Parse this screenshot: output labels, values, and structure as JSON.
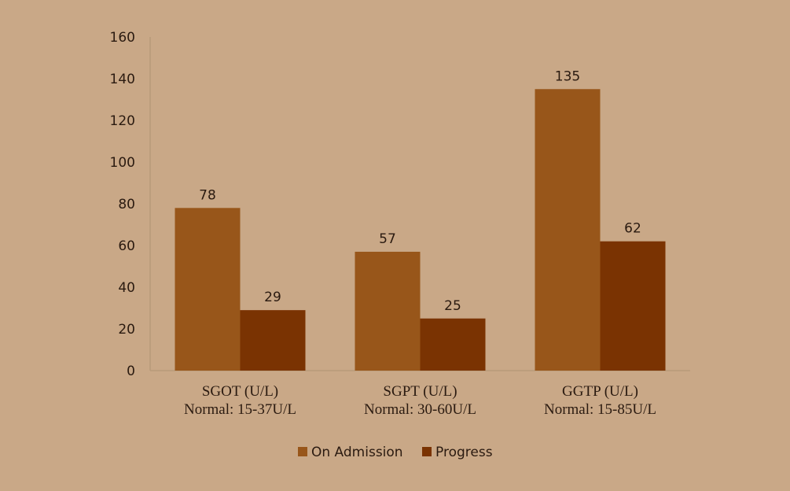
{
  "chart_data": {
    "type": "bar",
    "categories": [
      [
        "SGOT (U/L)",
        "Normal: 15-37U/L"
      ],
      [
        "SGPT (U/L)",
        "Normal: 30-60U/L"
      ],
      [
        "GGTP (U/L)",
        "Normal: 15-85U/L"
      ]
    ],
    "series": [
      {
        "name": "On Admission",
        "values": [
          78,
          57,
          135
        ],
        "color": "#98561a"
      },
      {
        "name": "Progress",
        "values": [
          29,
          25,
          62
        ],
        "color": "#7a3302"
      }
    ],
    "ylim": [
      0,
      160
    ],
    "yticks": [
      "0",
      "20",
      "40",
      "60",
      "80",
      "100",
      "120",
      "140",
      "160"
    ],
    "data_labels": true,
    "legend_position": "bottom",
    "grid": false,
    "axis_color": "#b89a7a",
    "background": "#c9a887"
  }
}
